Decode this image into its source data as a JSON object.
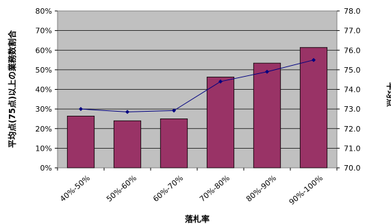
{
  "chart_data": {
    "type": "bar",
    "categories": [
      "40%-50%",
      "50%-60%",
      "60%-70%",
      "70%-80%",
      "80%-90%",
      "90%-100%"
    ],
    "series": [
      {
        "type": "bar",
        "axis": "left",
        "values": [
          26.4,
          24.0,
          25.0,
          46.3,
          53.4,
          61.4
        ],
        "color": "#993366"
      },
      {
        "type": "line",
        "axis": "right",
        "values": [
          73.0,
          72.85,
          72.92,
          74.4,
          74.9,
          75.5
        ],
        "color": "#000080"
      }
    ],
    "xlabel": "落札率",
    "ylabel": "平均点(75点)以上の業務数割合",
    "y2label": "平均点",
    "ylim": [
      0,
      80
    ],
    "y2lim": [
      70.0,
      78.0
    ],
    "yticks": [
      "0%",
      "10%",
      "20%",
      "30%",
      "40%",
      "50%",
      "60%",
      "70%",
      "80%"
    ],
    "y2ticks": [
      "70.0",
      "71.0",
      "72.0",
      "73.0",
      "74.0",
      "75.0",
      "76.0",
      "77.0",
      "78.0"
    ],
    "plot_background": "#c0c0c0",
    "grid": true
  }
}
